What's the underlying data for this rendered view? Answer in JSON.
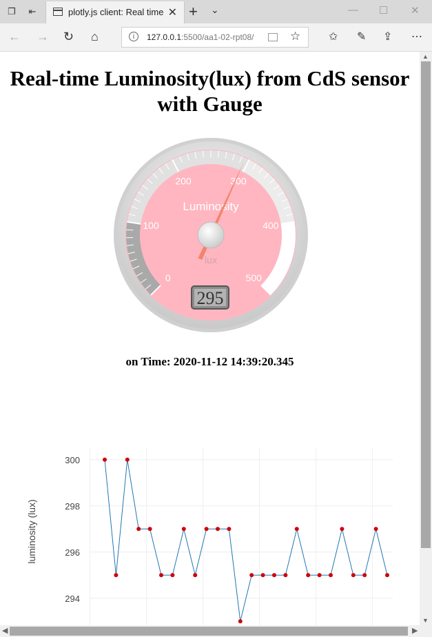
{
  "browser": {
    "tab_title": "plotly.js client: Real time",
    "tab_close": "✕",
    "new_tab": "+",
    "url_host": "127.0.0.1",
    "url_rest": ":5500/aa1-02-rpt08/"
  },
  "page": {
    "title": "Real-time Luminosity(lux) from CdS sensor with Gauge",
    "time_label": "on Time: 2020-11-12 14:39:20.345"
  },
  "gauge": {
    "title": "Luminosity",
    "units": "lux",
    "value": 295,
    "value_text": "295",
    "min": 0,
    "max": 500,
    "tick_labels": [
      "0",
      "100",
      "200",
      "300",
      "400",
      "500"
    ],
    "highlights": [
      {
        "from": 0,
        "to": 100,
        "color": "#a9a9a9"
      },
      {
        "from": 100,
        "to": 300,
        "color": "#e1e1e1"
      },
      {
        "from": 300,
        "to": 400,
        "color": "#ececec"
      },
      {
        "from": 400,
        "to": 500,
        "color": "#ffffff"
      }
    ],
    "plate_color": "#ffb6c1",
    "needle_color": "#f08060"
  },
  "chart_data": {
    "type": "line",
    "ylabel": "luminosity (lux)",
    "y_ticks": [
      294,
      296,
      298,
      300
    ],
    "ylim": [
      292.8,
      300.5
    ],
    "grid": true,
    "series": [
      {
        "values": [
          300,
          295,
          300,
          297,
          297,
          295,
          295,
          297,
          295,
          297,
          297,
          297,
          293,
          295,
          295,
          295,
          295,
          297,
          295,
          295,
          295,
          297,
          295,
          295,
          297,
          295
        ],
        "line_color": "#1f77b4",
        "marker_color": "#d0000a"
      }
    ]
  }
}
